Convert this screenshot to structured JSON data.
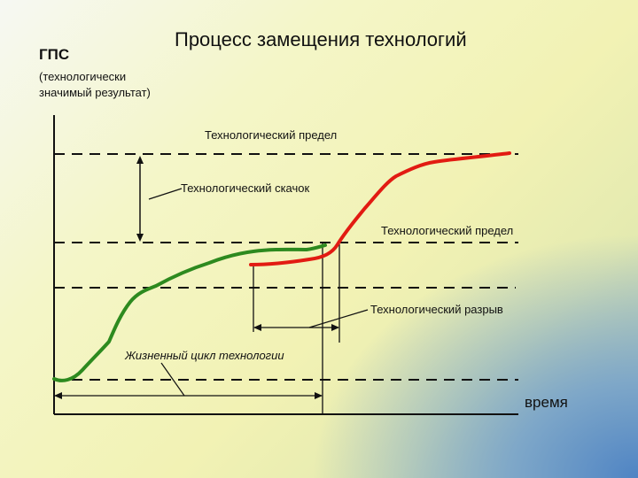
{
  "title": "Процесс замещения технологий",
  "y_axis": {
    "title": "ГПС",
    "subtitle": "(технологически значимый результат)"
  },
  "x_axis": {
    "label": "время"
  },
  "annotations": {
    "tech_limit_top": "Технологический предел",
    "tech_jump": "Технологический скачок",
    "tech_limit_mid": "Технологический предел",
    "tech_gap": "Технологический разрыв",
    "life_cycle": "Жизненный цикл технологии"
  },
  "colors": {
    "old_technology_curve": "#2d8a1f",
    "new_technology_curve": "#e21b12",
    "lines": "#111111"
  }
}
